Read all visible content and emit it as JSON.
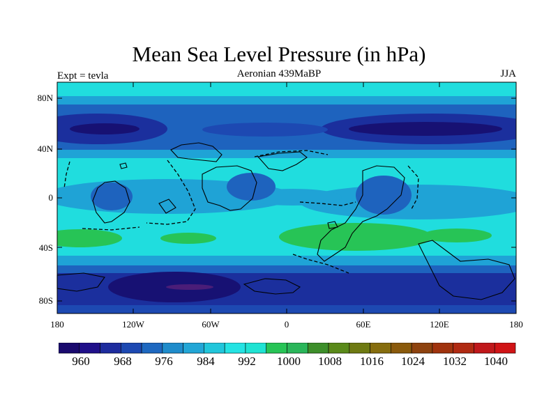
{
  "title": "Mean Sea Level Pressure (in hPa)",
  "subtitle_left": "Expt = tevla",
  "subtitle_center": "Aeronian 439MaBP",
  "subtitle_right": "JJA",
  "map": {
    "projection": "cylindrical-equidistant",
    "lon_range": [
      -180,
      180
    ],
    "lat_range": [
      -90,
      90
    ],
    "lat_ticks": [
      "80N",
      "40N",
      "0",
      "40S",
      "80S"
    ],
    "lon_ticks": [
      "180",
      "120W",
      "60W",
      "0",
      "60E",
      "120E",
      "180"
    ]
  },
  "colorbar": {
    "levels": [
      "960",
      "968",
      "976",
      "984",
      "992",
      "1000",
      "1008",
      "1016",
      "1024",
      "1032",
      "1040"
    ],
    "colors": [
      "#1a0a6e",
      "#20108a",
      "#1e2c9e",
      "#1d49b2",
      "#1e68c0",
      "#1f8ccb",
      "#22a6d6",
      "#21c6db",
      "#24e3e3",
      "#1fe3d3",
      "#27c456",
      "#2ab65a",
      "#3d8f2a",
      "#5a8a1a",
      "#6e7a12",
      "#866d0e",
      "#8a5a0c",
      "#8e430f",
      "#a0330e",
      "#b02a12",
      "#c0181b",
      "#d01416"
    ]
  },
  "colors": {
    "band_deep": "#171173",
    "band_dark": "#1b2f9d",
    "band_mid": "#1e63be",
    "band_light": "#1fa3d6",
    "band_cyan": "#20ddde",
    "band_green": "#27c456",
    "band_min": "#4a1d78"
  }
}
